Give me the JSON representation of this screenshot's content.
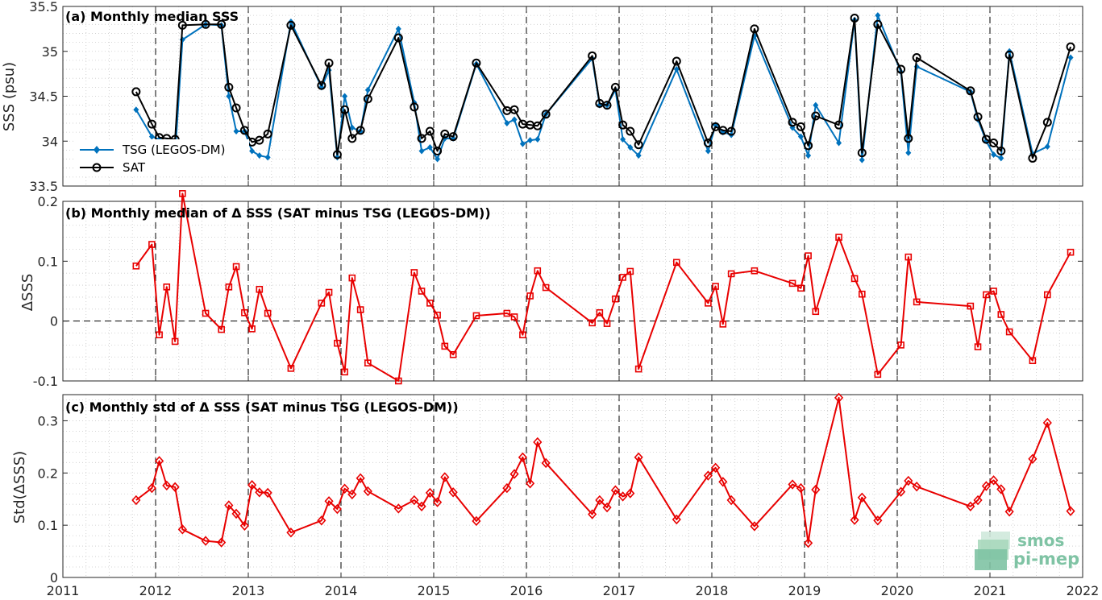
{
  "logo": {
    "line1": "smos",
    "line2": "pi-mep"
  },
  "colors": {
    "tsg": "#0072bd",
    "sat": "#000000",
    "delta": "#e80000"
  },
  "chart_data": [
    {
      "type": "line",
      "title": "(a) Monthly median SSS",
      "ylabel": "SSS (psu)",
      "xlabel": "",
      "xlim": [
        2011,
        2022
      ],
      "ylim": [
        33.5,
        35.5
      ],
      "yticks": [
        33.5,
        34,
        34.5,
        35,
        35.5
      ],
      "yticklabels": [
        "33.5",
        "34",
        "34.5",
        "35",
        "35.5"
      ],
      "grid": true,
      "legend": "left-middle",
      "series": [
        {
          "name": "TSG (LEGOS-DM)",
          "marker": "filled-diamond",
          "color": "#0072bd",
          "x": [
            2011.79,
            2011.96,
            2012.04,
            2012.12,
            2012.21,
            2012.29,
            2012.54,
            2012.71,
            2012.79,
            2012.87,
            2012.96,
            2013.04,
            2013.12,
            2013.21,
            2013.46,
            2013.79,
            2013.87,
            2013.96,
            2014.04,
            2014.12,
            2014.21,
            2014.29,
            2014.62,
            2014.79,
            2014.87,
            2014.96,
            2015.04,
            2015.12,
            2015.21,
            2015.46,
            2015.79,
            2015.87,
            2015.96,
            2016.04,
            2016.12,
            2016.21,
            2016.71,
            2016.79,
            2016.87,
            2016.96,
            2017.04,
            2017.12,
            2017.21,
            2017.62,
            2017.96,
            2018.04,
            2018.12,
            2018.21,
            2018.46,
            2018.87,
            2018.96,
            2019.04,
            2019.12,
            2019.37,
            2019.54,
            2019.62,
            2019.79,
            2020.04,
            2020.12,
            2020.21,
            2020.79,
            2020.87,
            2020.96,
            2021.04,
            2021.12,
            2021.21,
            2021.46,
            2021.62,
            2021.87
          ],
          "y": [
            34.35,
            34.05,
            34.02,
            34.0,
            33.84,
            35.13,
            35.3,
            35.29,
            34.5,
            34.11,
            34.11,
            33.89,
            33.84,
            33.82,
            35.33,
            34.6,
            34.79,
            33.82,
            34.5,
            34.15,
            34.11,
            34.57,
            35.25,
            34.43,
            33.89,
            33.93,
            33.8,
            34.03,
            34.03,
            34.86,
            34.2,
            34.24,
            33.97,
            34.01,
            34.02,
            34.3,
            34.92,
            34.4,
            34.4,
            34.57,
            34.02,
            33.93,
            33.84,
            34.8,
            33.89,
            34.18,
            34.1,
            34.07,
            35.17,
            34.15,
            34.05,
            33.84,
            34.4,
            33.98,
            35.35,
            33.79,
            35.4,
            34.77,
            33.87,
            34.83,
            34.55,
            34.24,
            34.0,
            33.85,
            33.81,
            35.0,
            33.86,
            33.94,
            34.93
          ]
        },
        {
          "name": "SAT",
          "marker": "open-circle",
          "color": "#000000",
          "x": [
            2011.79,
            2011.96,
            2012.04,
            2012.12,
            2012.21,
            2012.29,
            2012.54,
            2012.71,
            2012.79,
            2012.87,
            2012.96,
            2013.04,
            2013.12,
            2013.21,
            2013.46,
            2013.79,
            2013.87,
            2013.96,
            2014.04,
            2014.12,
            2014.21,
            2014.29,
            2014.62,
            2014.79,
            2014.87,
            2014.96,
            2015.04,
            2015.12,
            2015.21,
            2015.46,
            2015.79,
            2015.87,
            2015.96,
            2016.04,
            2016.12,
            2016.21,
            2016.71,
            2016.79,
            2016.87,
            2016.96,
            2017.04,
            2017.12,
            2017.21,
            2017.62,
            2017.96,
            2018.04,
            2018.12,
            2018.21,
            2018.46,
            2018.87,
            2018.96,
            2019.04,
            2019.12,
            2019.37,
            2019.54,
            2019.62,
            2019.79,
            2020.04,
            2020.12,
            2020.21,
            2020.79,
            2020.87,
            2020.96,
            2021.04,
            2021.12,
            2021.21,
            2021.46,
            2021.62,
            2021.87
          ],
          "y": [
            34.55,
            34.19,
            34.04,
            34.03,
            34.02,
            35.29,
            35.3,
            35.3,
            34.6,
            34.37,
            34.12,
            33.99,
            34.01,
            34.08,
            35.29,
            34.62,
            34.87,
            33.85,
            34.35,
            34.03,
            34.12,
            34.47,
            35.15,
            34.38,
            34.03,
            34.11,
            33.89,
            34.08,
            34.05,
            34.87,
            34.34,
            34.35,
            34.19,
            34.18,
            34.17,
            34.3,
            34.95,
            34.42,
            34.4,
            34.6,
            34.18,
            34.11,
            33.96,
            34.89,
            33.98,
            34.16,
            34.12,
            34.11,
            35.25,
            34.21,
            34.16,
            33.95,
            34.28,
            34.18,
            35.37,
            33.87,
            35.3,
            34.8,
            34.03,
            34.93,
            34.56,
            34.27,
            34.02,
            33.98,
            33.89,
            34.96,
            33.81,
            34.21,
            35.05
          ]
        }
      ]
    },
    {
      "type": "line",
      "title": "(b) Monthly median of Δ SSS (SAT minus TSG (LEGOS-DM))",
      "ylabel": "ΔSSS",
      "xlabel": "",
      "xlim": [
        2011,
        2022
      ],
      "ylim": [
        -0.1,
        0.2
      ],
      "yticks": [
        -0.1,
        0,
        0.1,
        0.2
      ],
      "yticklabels": [
        "-0.1",
        "0",
        "0.1",
        "0.2"
      ],
      "zero_line": "dashed",
      "grid": true,
      "series": [
        {
          "marker": "open-square",
          "color": "#e80000",
          "x": [
            2011.79,
            2011.96,
            2012.04,
            2012.12,
            2012.21,
            2012.29,
            2012.54,
            2012.71,
            2012.79,
            2012.87,
            2012.96,
            2013.04,
            2013.12,
            2013.21,
            2013.46,
            2013.79,
            2013.87,
            2013.96,
            2014.04,
            2014.12,
            2014.21,
            2014.29,
            2014.62,
            2014.79,
            2014.87,
            2014.96,
            2015.04,
            2015.12,
            2015.21,
            2015.46,
            2015.79,
            2015.87,
            2015.96,
            2016.04,
            2016.12,
            2016.21,
            2016.71,
            2016.79,
            2016.87,
            2016.96,
            2017.04,
            2017.12,
            2017.21,
            2017.62,
            2017.96,
            2018.04,
            2018.12,
            2018.21,
            2018.46,
            2018.87,
            2018.96,
            2019.04,
            2019.12,
            2019.37,
            2019.54,
            2019.62,
            2019.79,
            2020.04,
            2020.12,
            2020.21,
            2020.79,
            2020.87,
            2020.96,
            2021.04,
            2021.12,
            2021.21,
            2021.46,
            2021.62,
            2021.87
          ],
          "y": [
            0.092,
            0.128,
            -0.023,
            0.057,
            -0.034,
            0.213,
            0.013,
            -0.014,
            0.057,
            0.091,
            0.014,
            -0.013,
            0.053,
            0.013,
            -0.079,
            0.03,
            0.048,
            -0.037,
            -0.085,
            0.072,
            0.019,
            -0.07,
            -0.1,
            0.081,
            0.05,
            0.03,
            0.01,
            -0.042,
            -0.056,
            0.009,
            0.013,
            0.007,
            -0.023,
            0.042,
            0.084,
            0.056,
            -0.003,
            0.014,
            -0.004,
            0.037,
            0.073,
            0.083,
            -0.08,
            0.098,
            0.03,
            0.058,
            -0.005,
            0.079,
            0.084,
            0.063,
            0.055,
            0.109,
            0.016,
            0.14,
            0.071,
            0.045,
            -0.089,
            -0.04,
            0.107,
            0.032,
            0.025,
            -0.043,
            0.044,
            0.05,
            0.011,
            -0.018,
            -0.066,
            0.044,
            0.115
          ]
        }
      ]
    },
    {
      "type": "line",
      "title": "(c) Monthly std of Δ SSS (SAT minus TSG (LEGOS-DM))",
      "ylabel": "Std(ΔSSS)",
      "xlabel": "",
      "xlim": [
        2011,
        2022
      ],
      "ylim": [
        0,
        0.35
      ],
      "yticks": [
        0,
        0.1,
        0.2,
        0.3
      ],
      "yticklabels": [
        "0",
        "0.1",
        "0.2",
        "0.3"
      ],
      "xticks": [
        2011,
        2012,
        2013,
        2014,
        2015,
        2016,
        2017,
        2018,
        2019,
        2020,
        2021,
        2022
      ],
      "xticklabels": [
        "2011",
        "2012",
        "2013",
        "2014",
        "2015",
        "2016",
        "2017",
        "2018",
        "2019",
        "2020",
        "2021",
        "2022"
      ],
      "grid": true,
      "series": [
        {
          "marker": "open-diamond",
          "color": "#e80000",
          "x": [
            2011.79,
            2011.96,
            2012.04,
            2012.12,
            2012.21,
            2012.29,
            2012.54,
            2012.71,
            2012.79,
            2012.87,
            2012.96,
            2013.04,
            2013.12,
            2013.21,
            2013.46,
            2013.79,
            2013.87,
            2013.96,
            2014.04,
            2014.12,
            2014.21,
            2014.29,
            2014.62,
            2014.79,
            2014.87,
            2014.96,
            2015.04,
            2015.12,
            2015.21,
            2015.46,
            2015.79,
            2015.87,
            2015.96,
            2016.04,
            2016.12,
            2016.21,
            2016.71,
            2016.79,
            2016.87,
            2016.96,
            2017.04,
            2017.12,
            2017.21,
            2017.62,
            2017.96,
            2018.04,
            2018.12,
            2018.21,
            2018.46,
            2018.87,
            2018.96,
            2019.04,
            2019.12,
            2019.37,
            2019.54,
            2019.62,
            2019.79,
            2020.04,
            2020.12,
            2020.21,
            2020.79,
            2020.87,
            2020.96,
            2021.04,
            2021.12,
            2021.21,
            2021.46,
            2021.62,
            2021.87
          ],
          "y": [
            0.148,
            0.171,
            0.223,
            0.176,
            0.173,
            0.092,
            0.07,
            0.067,
            0.138,
            0.122,
            0.099,
            0.177,
            0.163,
            0.162,
            0.086,
            0.109,
            0.146,
            0.131,
            0.17,
            0.159,
            0.19,
            0.165,
            0.132,
            0.148,
            0.136,
            0.162,
            0.144,
            0.192,
            0.163,
            0.108,
            0.171,
            0.198,
            0.23,
            0.18,
            0.259,
            0.219,
            0.121,
            0.148,
            0.134,
            0.167,
            0.155,
            0.161,
            0.23,
            0.111,
            0.195,
            0.21,
            0.183,
            0.148,
            0.098,
            0.178,
            0.171,
            0.066,
            0.168,
            0.344,
            0.11,
            0.153,
            0.109,
            0.164,
            0.185,
            0.174,
            0.136,
            0.148,
            0.175,
            0.186,
            0.169,
            0.126,
            0.227,
            0.296,
            0.127
          ]
        }
      ]
    }
  ]
}
